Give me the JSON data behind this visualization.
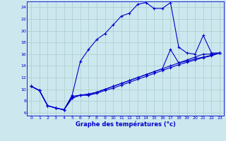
{
  "xlabel": "Graphe des températures (°c)",
  "bg_color": "#cce8ee",
  "grid_color": "#aacccc",
  "line_color": "#0000cc",
  "xlim": [
    -0.5,
    23.5
  ],
  "ylim": [
    5.5,
    25.0
  ],
  "xticks": [
    0,
    1,
    2,
    3,
    4,
    5,
    6,
    7,
    8,
    9,
    10,
    11,
    12,
    13,
    14,
    15,
    16,
    17,
    18,
    19,
    20,
    21,
    22,
    23
  ],
  "yticks": [
    6,
    8,
    10,
    12,
    14,
    16,
    18,
    20,
    22,
    24
  ],
  "temp_main": [
    10.5,
    9.8,
    7.2,
    6.8,
    6.5,
    9.0,
    14.8,
    16.8,
    18.5,
    19.5,
    21.0,
    22.5,
    23.0,
    24.5,
    24.8,
    23.8,
    23.8,
    24.8,
    17.2,
    16.2,
    16.0,
    19.2,
    16.2,
    16.2
  ],
  "temp_low1": [
    10.5,
    9.8,
    7.2,
    6.8,
    6.5,
    8.8,
    9.0,
    9.2,
    9.5,
    10.0,
    10.5,
    11.0,
    11.5,
    12.0,
    12.5,
    13.0,
    13.5,
    16.8,
    14.5,
    15.0,
    15.5,
    16.0,
    16.0,
    16.2
  ],
  "temp_low2": [
    10.5,
    9.8,
    7.2,
    6.8,
    6.5,
    8.5,
    9.0,
    9.0,
    9.5,
    10.0,
    10.5,
    11.0,
    11.5,
    12.0,
    12.5,
    13.0,
    13.5,
    14.0,
    14.5,
    14.8,
    15.2,
    15.5,
    15.8,
    16.2
  ],
  "temp_low3": [
    10.5,
    9.8,
    7.2,
    6.8,
    6.5,
    8.5,
    9.0,
    9.0,
    9.3,
    9.8,
    10.2,
    10.7,
    11.2,
    11.7,
    12.2,
    12.7,
    13.2,
    13.7,
    14.2,
    14.6,
    15.0,
    15.4,
    15.7,
    16.2
  ]
}
